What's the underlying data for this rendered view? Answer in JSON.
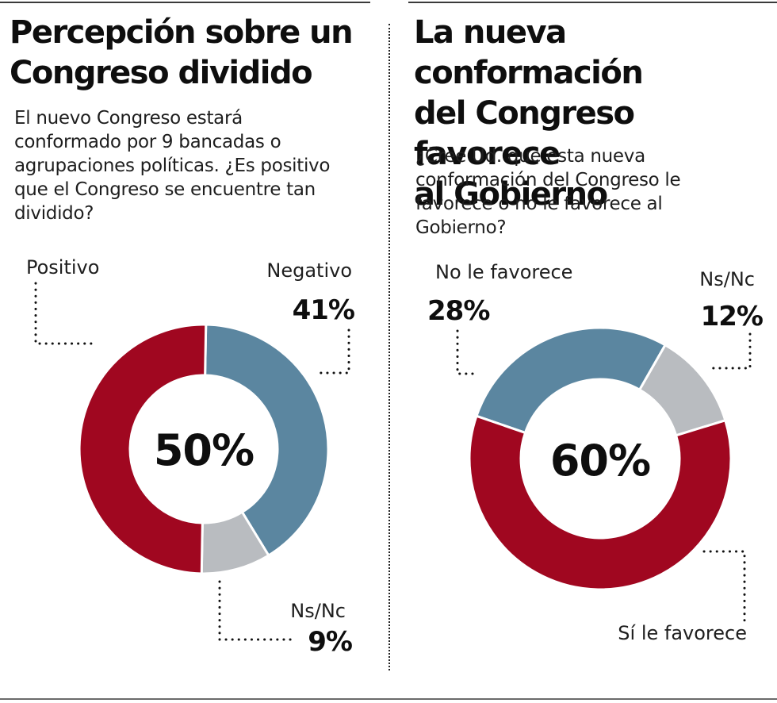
{
  "panels": [
    {
      "title_lines": [
        "Percepción sobre un",
        "Congreso dividido"
      ],
      "question_lines": [
        "El nuevo Congreso estará",
        "conformado por 9 bancadas o",
        "agrupaciones políticas. ¿Es positivo",
        "que el Congreso se encuentre tan",
        "dividido?"
      ],
      "center_label": "50%"
    },
    {
      "title_lines": [
        "La nueva conformación",
        "del Congreso favorece",
        "al Gobierno"
      ],
      "question_lines": [
        "¿Cree Ud. que esta nueva",
        "conformación del Congreso le",
        "favorece o no le favorece al",
        "Gobierno?"
      ],
      "center_label": "60%"
    }
  ],
  "chart_data": [
    {
      "type": "pie",
      "variant": "donut",
      "title": "Percepción sobre un Congreso dividido",
      "subtitle": "El nuevo Congreso estará conformado por 9 bancadas o agrupaciones políticas. ¿Es positivo que el Congreso se encuentre tan dividido?",
      "center_text": "50%",
      "slices": [
        {
          "label": "Negativo",
          "value": 41,
          "display": "41%",
          "color": "#5b86a0"
        },
        {
          "label": "Ns/Nc",
          "value": 9,
          "display": "9%",
          "color": "#b9bcc0"
        },
        {
          "label": "Positivo",
          "value": 50,
          "display": "",
          "color": "#a00720"
        }
      ]
    },
    {
      "type": "pie",
      "variant": "donut",
      "title": "La nueva conformación del Congreso favorece al Gobierno",
      "subtitle": "¿Cree Ud. que esta nueva conformación del Congreso le favorece o no le favorece al Gobierno?",
      "center_text": "60%",
      "slices": [
        {
          "label": "No le favorece",
          "value": 28,
          "display": "28%",
          "color": "#5b86a0"
        },
        {
          "label": "Ns/Nc",
          "value": 12,
          "display": "12%",
          "color": "#b9bcc0"
        },
        {
          "label": "Sí le favorece",
          "value": 60,
          "display": "",
          "color": "#a00720"
        }
      ]
    }
  ]
}
